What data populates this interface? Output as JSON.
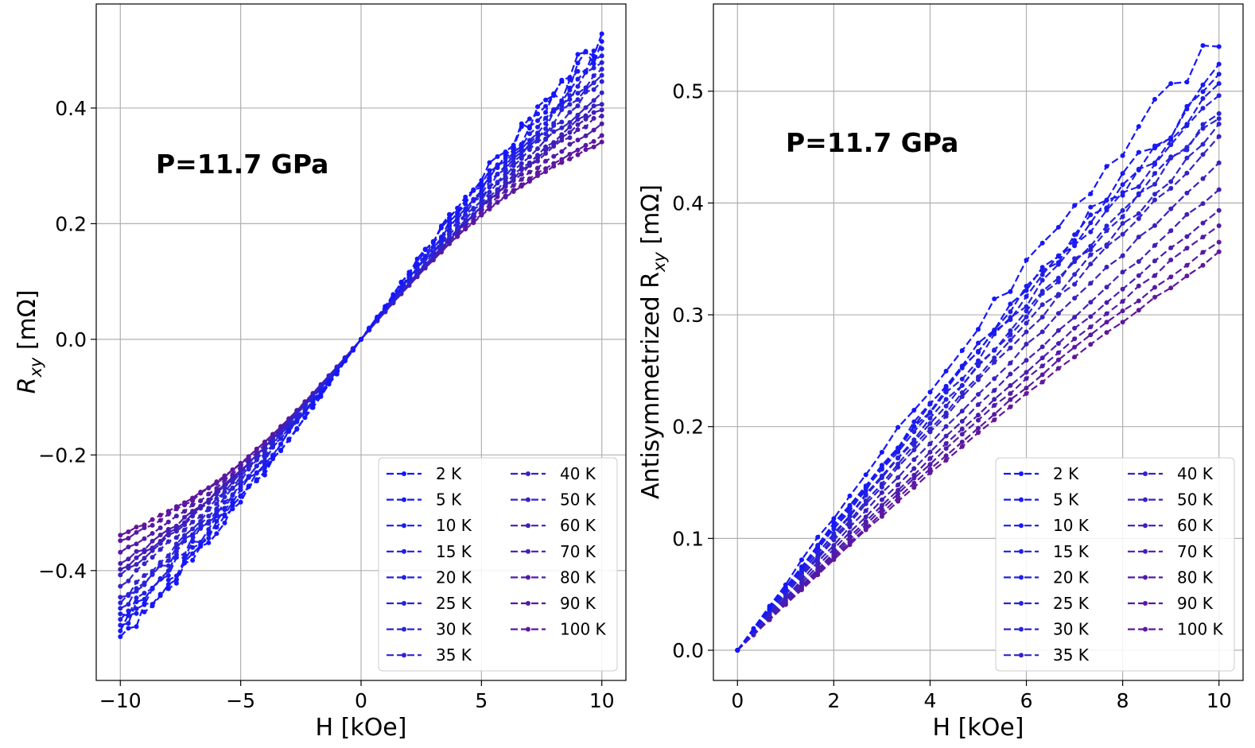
{
  "chart_data": [
    {
      "type": "line",
      "name": "left-panel",
      "xlabel": "H [kOe]",
      "ylabel_main": "R",
      "ylabel_sub": "xy",
      "ylabel_unit": " [mΩ]",
      "xlim": [
        -11.0,
        11.0
      ],
      "ylim": [
        -0.59,
        0.58
      ],
      "xticks": [
        -10,
        -5,
        0,
        5,
        10
      ],
      "xtick_labels": [
        "−10",
        "−5",
        "0",
        "5",
        "10"
      ],
      "yticks": [
        -0.4,
        -0.2,
        0.0,
        0.2,
        0.4
      ],
      "ytick_labels": [
        "−0.4",
        "−0.2",
        "0.0",
        "0.2",
        "0.4"
      ],
      "grid": true,
      "annotation": "P=11.7 GPa",
      "legend_position": "lower-right",
      "x_range": [
        -10,
        10
      ],
      "points_per_series": 61,
      "series": [
        {
          "name": "2 K",
          "color": "#1515ff",
          "end_value": 0.52,
          "bulge": 0.02,
          "noise": 0.022
        },
        {
          "name": "5 K",
          "color": "#1818f6",
          "end_value": 0.51,
          "bulge": 0.019,
          "noise": 0.02
        },
        {
          "name": "10 K",
          "color": "#1b1bf0",
          "end_value": 0.5,
          "bulge": 0.018,
          "noise": 0.018
        },
        {
          "name": "15 K",
          "color": "#1f1dea",
          "end_value": 0.49,
          "bulge": 0.017,
          "noise": 0.016
        },
        {
          "name": "20 K",
          "color": "#2320e4",
          "end_value": 0.48,
          "bulge": 0.016,
          "noise": 0.014
        },
        {
          "name": "25 K",
          "color": "#2622de",
          "end_value": 0.47,
          "bulge": 0.015,
          "noise": 0.012
        },
        {
          "name": "30 K",
          "color": "#2a24d6",
          "end_value": 0.46,
          "bulge": 0.014,
          "noise": 0.01
        },
        {
          "name": "35 K",
          "color": "#2f24cf",
          "end_value": 0.45,
          "bulge": 0.013,
          "noise": 0.009
        },
        {
          "name": "40 K",
          "color": "#3422c8",
          "end_value": 0.43,
          "bulge": 0.018,
          "noise": 0.006
        },
        {
          "name": "50 K",
          "color": "#3a20c0",
          "end_value": 0.41,
          "bulge": 0.024,
          "noise": 0.005
        },
        {
          "name": "60 K",
          "color": "#421eb7",
          "end_value": 0.4,
          "bulge": 0.028,
          "noise": 0.004
        },
        {
          "name": "70 K",
          "color": "#4a1cb0",
          "end_value": 0.39,
          "bulge": 0.032,
          "noise": 0.004
        },
        {
          "name": "80 K",
          "color": "#521aa8",
          "end_value": 0.37,
          "bulge": 0.036,
          "noise": 0.003
        },
        {
          "name": "90 K",
          "color": "#5a18a2",
          "end_value": 0.35,
          "bulge": 0.04,
          "noise": 0.003
        },
        {
          "name": "100 K",
          "color": "#62169b",
          "end_value": 0.34,
          "bulge": 0.044,
          "noise": 0.002
        }
      ]
    },
    {
      "type": "line",
      "name": "right-panel",
      "xlabel": "H [kOe]",
      "ylabel_main": "Antisymmetrized R",
      "ylabel_sub": "xy",
      "ylabel_unit": " [mΩ]",
      "xlim": [
        -0.5,
        10.5
      ],
      "ylim": [
        -0.027,
        0.578
      ],
      "xticks": [
        0,
        2,
        4,
        6,
        8,
        10
      ],
      "xtick_labels": [
        "0",
        "2",
        "4",
        "6",
        "8",
        "10"
      ],
      "yticks": [
        0.0,
        0.1,
        0.2,
        0.3,
        0.4,
        0.5
      ],
      "ytick_labels": [
        "0.0",
        "0.1",
        "0.2",
        "0.3",
        "0.4",
        "0.5"
      ],
      "grid": true,
      "annotation": "P=11.7 GPa",
      "legend_position": "lower-right",
      "x_range": [
        0,
        10
      ],
      "points_per_series": 31,
      "series": [
        {
          "name": "2 K",
          "color": "#1515ff",
          "end_value": 0.55,
          "curve": 0.015,
          "noise": 0.012
        },
        {
          "name": "5 K",
          "color": "#1818f6",
          "end_value": 0.515,
          "curve": 0.015,
          "noise": 0.011
        },
        {
          "name": "10 K",
          "color": "#1b1bf0",
          "end_value": 0.51,
          "curve": 0.015,
          "noise": 0.01
        },
        {
          "name": "15 K",
          "color": "#1f1dea",
          "end_value": 0.505,
          "curve": 0.014,
          "noise": 0.009
        },
        {
          "name": "20 K",
          "color": "#2320e4",
          "end_value": 0.497,
          "curve": 0.014,
          "noise": 0.008
        },
        {
          "name": "25 K",
          "color": "#2622de",
          "end_value": 0.483,
          "curve": 0.013,
          "noise": 0.007
        },
        {
          "name": "30 K",
          "color": "#2a24d6",
          "end_value": 0.48,
          "curve": 0.013,
          "noise": 0.006
        },
        {
          "name": "35 K",
          "color": "#2f24cf",
          "end_value": 0.466,
          "curve": 0.012,
          "noise": 0.005
        },
        {
          "name": "40 K",
          "color": "#3422c8",
          "end_value": 0.457,
          "curve": 0.012,
          "noise": 0.004
        },
        {
          "name": "50 K",
          "color": "#3a20c0",
          "end_value": 0.435,
          "curve": 0.012,
          "noise": 0.003
        },
        {
          "name": "60 K",
          "color": "#421eb7",
          "end_value": 0.412,
          "curve": 0.013,
          "noise": 0.003
        },
        {
          "name": "70 K",
          "color": "#4a1cb0",
          "end_value": 0.394,
          "curve": 0.014,
          "noise": 0.002
        },
        {
          "name": "80 K",
          "color": "#521aa8",
          "end_value": 0.381,
          "curve": 0.015,
          "noise": 0.002
        },
        {
          "name": "90 K",
          "color": "#5a18a2",
          "end_value": 0.367,
          "curve": 0.016,
          "noise": 0.002
        },
        {
          "name": "100 K",
          "color": "#62169b",
          "end_value": 0.355,
          "curve": 0.017,
          "noise": 0.002
        }
      ]
    }
  ]
}
